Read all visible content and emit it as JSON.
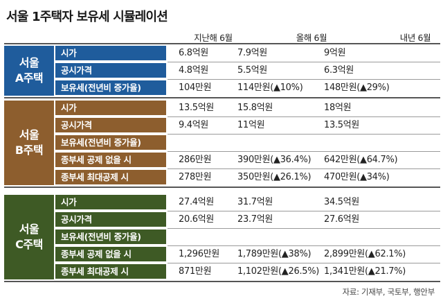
{
  "title": "서울 1주택자 보유세 시뮬레이션",
  "columns": [
    "지난해 6월",
    "올해 6월",
    "내년 6월"
  ],
  "colors": {
    "group_a": "#1f5c9c",
    "group_b": "#8d5e2e",
    "group_c": "#3e5a25"
  },
  "groups": [
    {
      "label_line1": "서울",
      "label_line2": "A주택",
      "rows": [
        {
          "label": "시가",
          "values": [
            "6.8억원",
            "7.9억원",
            "9억원"
          ]
        },
        {
          "label": "공시가격",
          "values": [
            "4.8억원",
            "5.5억원",
            "6.3억원"
          ]
        },
        {
          "label": "보유세(전년비 증가율)",
          "values": [
            "104만원",
            "114만원(▲10%)",
            "148만원(▲29%)"
          ]
        }
      ]
    },
    {
      "label_line1": "서울",
      "label_line2": "B주택",
      "rows": [
        {
          "label": "시가",
          "values": [
            "13.5억원",
            "15.8억원",
            "18억원"
          ]
        },
        {
          "label": "공시가격",
          "values": [
            "9.4억원",
            "11억원",
            "13.5억원"
          ]
        },
        {
          "label": "보유세(전년비 증가율)",
          "values": [
            "",
            "",
            ""
          ]
        },
        {
          "label": "종부세 공제 없을 시",
          "values": [
            "286만원",
            "390만원(▲36.4%)",
            "642만원(▲64.7%)"
          ]
        },
        {
          "label": "종부세 최대공제 시",
          "values": [
            "278만원",
            "350만원(▲26.1%)",
            "470만원(▲34%)"
          ]
        }
      ]
    },
    {
      "label_line1": "서울",
      "label_line2": "C주택",
      "rows": [
        {
          "label": "시가",
          "values": [
            "27.4억원",
            "31.7억원",
            "34.5억원"
          ]
        },
        {
          "label": "공시가격",
          "values": [
            "20.6억원",
            "23.7억원",
            "27.6억원"
          ]
        },
        {
          "label": "보유세(전년비 증가율)",
          "values": [
            "",
            "",
            ""
          ]
        },
        {
          "label": "종부세 공제 없을 시",
          "values": [
            "1,296만원",
            "1,789만원(▲38%)",
            "2,899만원(▲62.1%)"
          ]
        },
        {
          "label": "종부세 최대공제 시",
          "values": [
            "871만원",
            "1,102만원(▲26.5%)",
            "1,341만원(▲21.7%)"
          ]
        }
      ]
    }
  ],
  "source": "자료: 기재부, 국토부, 행안부"
}
